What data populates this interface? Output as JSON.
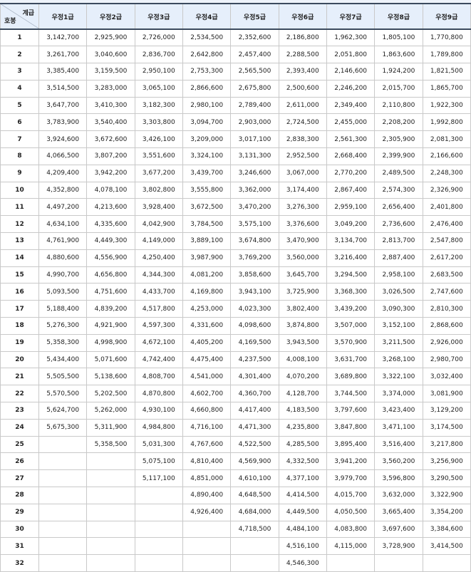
{
  "table": {
    "corner_top": "계급",
    "corner_bottom": "호봉",
    "headers": [
      "우정1급",
      "우정2급",
      "우정3급",
      "우정4급",
      "우정5급",
      "우정6급",
      "우정7급",
      "우정8급",
      "우정9급"
    ],
    "rows": [
      [
        "1",
        "3,142,700",
        "2,925,900",
        "2,726,000",
        "2,534,500",
        "2,352,600",
        "2,186,800",
        "1,962,300",
        "1,805,100",
        "1,770,800"
      ],
      [
        "2",
        "3,261,700",
        "3,040,600",
        "2,836,700",
        "2,642,800",
        "2,457,400",
        "2,288,500",
        "2,051,800",
        "1,863,600",
        "1,789,800"
      ],
      [
        "3",
        "3,385,400",
        "3,159,500",
        "2,950,100",
        "2,753,300",
        "2,565,500",
        "2,393,400",
        "2,146,600",
        "1,924,200",
        "1,821,500"
      ],
      [
        "4",
        "3,514,500",
        "3,283,000",
        "3,065,100",
        "2,866,600",
        "2,675,800",
        "2,500,600",
        "2,246,200",
        "2,015,700",
        "1,865,700"
      ],
      [
        "5",
        "3,647,700",
        "3,410,300",
        "3,182,300",
        "2,980,100",
        "2,789,400",
        "2,611,000",
        "2,349,400",
        "2,110,800",
        "1,922,300"
      ],
      [
        "6",
        "3,783,900",
        "3,540,400",
        "3,303,800",
        "3,094,700",
        "2,903,000",
        "2,724,500",
        "2,455,000",
        "2,208,200",
        "1,992,800"
      ],
      [
        "7",
        "3,924,600",
        "3,672,600",
        "3,426,100",
        "3,209,000",
        "3,017,100",
        "2,838,300",
        "2,561,300",
        "2,305,900",
        "2,081,300"
      ],
      [
        "8",
        "4,066,500",
        "3,807,200",
        "3,551,600",
        "3,324,100",
        "3,131,300",
        "2,952,500",
        "2,668,400",
        "2,399,900",
        "2,166,600"
      ],
      [
        "9",
        "4,209,400",
        "3,942,200",
        "3,677,200",
        "3,439,700",
        "3,246,600",
        "3,067,000",
        "2,770,200",
        "2,489,500",
        "2,248,300"
      ],
      [
        "10",
        "4,352,800",
        "4,078,100",
        "3,802,800",
        "3,555,800",
        "3,362,000",
        "3,174,400",
        "2,867,400",
        "2,574,300",
        "2,326,900"
      ],
      [
        "11",
        "4,497,200",
        "4,213,600",
        "3,928,400",
        "3,672,500",
        "3,470,200",
        "3,276,300",
        "2,959,100",
        "2,656,400",
        "2,401,800"
      ],
      [
        "12",
        "4,634,100",
        "4,335,600",
        "4,042,900",
        "3,784,500",
        "3,575,100",
        "3,376,600",
        "3,049,200",
        "2,736,600",
        "2,476,400"
      ],
      [
        "13",
        "4,761,900",
        "4,449,300",
        "4,149,000",
        "3,889,100",
        "3,674,800",
        "3,470,900",
        "3,134,700",
        "2,813,700",
        "2,547,800"
      ],
      [
        "14",
        "4,880,600",
        "4,556,900",
        "4,250,400",
        "3,987,900",
        "3,769,200",
        "3,560,000",
        "3,216,400",
        "2,887,400",
        "2,617,200"
      ],
      [
        "15",
        "4,990,700",
        "4,656,800",
        "4,344,300",
        "4,081,200",
        "3,858,600",
        "3,645,700",
        "3,294,500",
        "2,958,100",
        "2,683,500"
      ],
      [
        "16",
        "5,093,500",
        "4,751,600",
        "4,433,700",
        "4,169,800",
        "3,943,100",
        "3,725,900",
        "3,368,300",
        "3,026,500",
        "2,747,600"
      ],
      [
        "17",
        "5,188,400",
        "4,839,200",
        "4,517,800",
        "4,253,000",
        "4,023,300",
        "3,802,400",
        "3,439,200",
        "3,090,300",
        "2,810,300"
      ],
      [
        "18",
        "5,276,300",
        "4,921,900",
        "4,597,300",
        "4,331,600",
        "4,098,600",
        "3,874,800",
        "3,507,000",
        "3,152,100",
        "2,868,600"
      ],
      [
        "19",
        "5,358,300",
        "4,998,900",
        "4,672,100",
        "4,405,200",
        "4,169,500",
        "3,943,500",
        "3,570,900",
        "3,211,500",
        "2,926,000"
      ],
      [
        "20",
        "5,434,400",
        "5,071,600",
        "4,742,400",
        "4,475,400",
        "4,237,500",
        "4,008,100",
        "3,631,700",
        "3,268,100",
        "2,980,700"
      ],
      [
        "21",
        "5,505,500",
        "5,138,600",
        "4,808,700",
        "4,541,000",
        "4,301,400",
        "4,070,200",
        "3,689,800",
        "3,322,100",
        "3,032,400"
      ],
      [
        "22",
        "5,570,500",
        "5,202,500",
        "4,870,800",
        "4,602,700",
        "4,360,700",
        "4,128,700",
        "3,744,500",
        "3,374,000",
        "3,081,900"
      ],
      [
        "23",
        "5,624,700",
        "5,262,000",
        "4,930,100",
        "4,660,800",
        "4,417,400",
        "4,183,500",
        "3,797,600",
        "3,423,400",
        "3,129,200"
      ],
      [
        "24",
        "5,675,300",
        "5,311,900",
        "4,984,800",
        "4,716,100",
        "4,471,300",
        "4,235,800",
        "3,847,800",
        "3,471,100",
        "3,174,500"
      ],
      [
        "25",
        "",
        "5,358,500",
        "5,031,300",
        "4,767,600",
        "4,522,500",
        "4,285,500",
        "3,895,400",
        "3,516,400",
        "3,217,800"
      ],
      [
        "26",
        "",
        "",
        "5,075,100",
        "4,810,400",
        "4,569,900",
        "4,332,500",
        "3,941,200",
        "3,560,200",
        "3,256,900"
      ],
      [
        "27",
        "",
        "",
        "5,117,100",
        "4,851,000",
        "4,610,100",
        "4,377,100",
        "3,979,700",
        "3,596,800",
        "3,290,500"
      ],
      [
        "28",
        "",
        "",
        "",
        "4,890,400",
        "4,648,500",
        "4,414,500",
        "4,015,700",
        "3,632,000",
        "3,322,900"
      ],
      [
        "29",
        "",
        "",
        "",
        "4,926,400",
        "4,684,000",
        "4,449,500",
        "4,050,500",
        "3,665,400",
        "3,354,200"
      ],
      [
        "30",
        "",
        "",
        "",
        "",
        "4,718,500",
        "4,484,100",
        "4,083,800",
        "3,697,600",
        "3,384,600"
      ],
      [
        "31",
        "",
        "",
        "",
        "",
        "",
        "4,516,100",
        "4,115,000",
        "3,728,900",
        "3,414,500"
      ],
      [
        "32",
        "",
        "",
        "",
        "",
        "",
        "4,546,300",
        "",
        "",
        ""
      ]
    ]
  }
}
